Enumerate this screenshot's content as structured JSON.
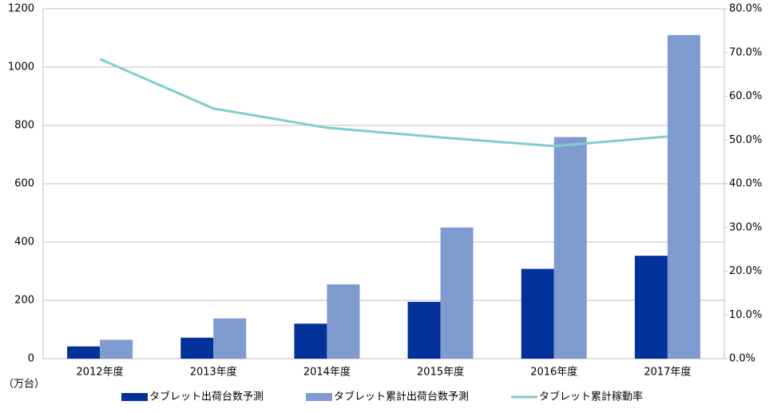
{
  "chart_data": {
    "type": "bar",
    "unit_label": "（万台）",
    "categories": [
      "2012年度",
      "2013年度",
      "2014年度",
      "2015年度",
      "2016年度",
      "2017年度"
    ],
    "series": [
      {
        "name": "タブレット出荷台数予測",
        "type": "bar",
        "color": "#023299",
        "values": [
          42,
          72,
          120,
          195,
          308,
          353
        ]
      },
      {
        "name": "タブレット累計出荷台数予測",
        "type": "bar",
        "color": "#7f9bcf",
        "values": [
          65,
          138,
          255,
          450,
          760,
          1110
        ]
      },
      {
        "name": "タブレット累計稼動率",
        "type": "line",
        "axis": "y2",
        "color": "#7fcdcd",
        "values": [
          68.5,
          57.2,
          52.8,
          50.6,
          48.6,
          50.8
        ]
      }
    ],
    "ylim": [
      0,
      1200
    ],
    "yticks": [
      0,
      200,
      400,
      600,
      800,
      1000,
      1200
    ],
    "y2lim": [
      0,
      80
    ],
    "y2ticks": [
      {
        "value": 0,
        "label": "0.0%"
      },
      {
        "value": 10,
        "label": "10.0%"
      },
      {
        "value": 20,
        "label": "20.0%"
      },
      {
        "value": 30,
        "label": "30.0%"
      },
      {
        "value": 40,
        "label": "40.0%"
      },
      {
        "value": 50,
        "label": "50.0%"
      },
      {
        "value": 60,
        "label": "60.0%"
      },
      {
        "value": 70,
        "label": "70.0%"
      },
      {
        "value": 80,
        "label": "80.0%"
      }
    ],
    "grid": true
  }
}
